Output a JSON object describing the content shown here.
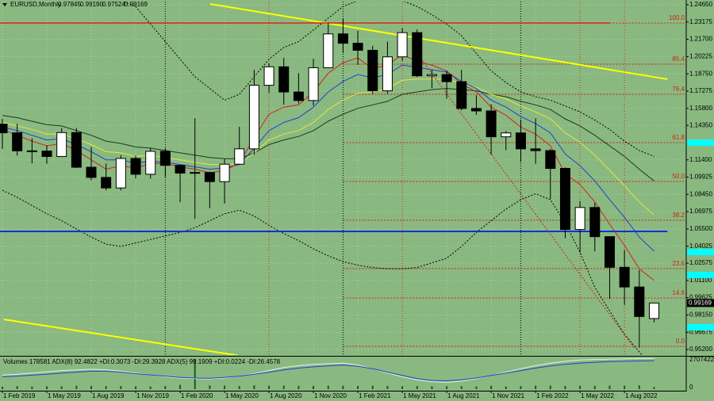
{
  "chart_data": {
    "type": "candlestick",
    "symbol": "EURUSD,Monthly",
    "last_bar_labels": [
      "0.97845",
      "0.99190",
      "0.97524",
      "0.99169"
    ],
    "categories": [
      "1 Feb 2019",
      null,
      null,
      "1 May 2019",
      null,
      null,
      "1 Aug 2019",
      null,
      null,
      "1 Nov 2019",
      null,
      null,
      "1 Feb 2020",
      null,
      null,
      "1 May 2020",
      null,
      null,
      "1 Aug 2020",
      null,
      null,
      "1 Nov 2020",
      null,
      null,
      "1 Feb 2021",
      null,
      null,
      "1 May 2021",
      null,
      null,
      "1 Aug 2021",
      null,
      null,
      "1 Nov 2021",
      null,
      null,
      "1 Feb 2022",
      null,
      null,
      "1 May 2022",
      null,
      null,
      "1 Aug 2022",
      null,
      null
    ],
    "open": [
      1.1445,
      1.1371,
      1.1217,
      1.1215,
      1.1169,
      1.1373,
      1.1077,
      1.099,
      1.09,
      1.1152,
      1.1017,
      1.1213,
      1.1093,
      1.1027,
      1.1032,
      1.0954,
      1.1103,
      1.1234,
      1.1777,
      1.1935,
      1.172,
      1.1647,
      1.1927,
      1.2216,
      1.2136,
      1.2076,
      1.173,
      1.202,
      1.2227,
      1.1858,
      1.1869,
      1.1808,
      1.1579,
      1.1558,
      1.1337,
      1.137,
      1.1234,
      1.1219,
      1.1067,
      1.0545,
      1.0733,
      1.0484,
      1.0222,
      1.0054,
      0.97845
    ],
    "high": [
      1.1489,
      1.1448,
      1.1324,
      1.1265,
      1.1412,
      1.1412,
      1.1249,
      1.1109,
      1.1179,
      1.1176,
      1.124,
      1.1239,
      1.1096,
      1.1495,
      1.104,
      1.1147,
      1.1422,
      1.1909,
      1.1966,
      1.2011,
      1.1881,
      1.2004,
      1.231,
      1.2349,
      1.2243,
      1.2114,
      1.215,
      1.2266,
      1.2254,
      1.1909,
      1.1901,
      1.1909,
      1.1692,
      1.1616,
      1.1386,
      1.1483,
      1.1495,
      1.1233,
      1.1076,
      1.0787,
      1.0774,
      1.0486,
      1.0369,
      1.0198,
      0.9919
    ],
    "low": [
      1.1234,
      1.1176,
      1.111,
      1.1107,
      1.1165,
      1.107,
      1.0965,
      1.0879,
      1.0879,
      1.0981,
      1.0981,
      1.0992,
      1.0778,
      1.0636,
      1.0727,
      1.0767,
      1.1098,
      1.1185,
      1.1711,
      1.1612,
      1.1622,
      1.1603,
      1.1923,
      1.2054,
      1.1952,
      1.1704,
      1.1704,
      1.1986,
      1.1847,
      1.1752,
      1.1664,
      1.1563,
      1.1524,
      1.1186,
      1.1222,
      1.1121,
      1.1106,
      1.0806,
      1.0471,
      1.0349,
      1.0359,
      0.9952,
      0.9901,
      0.9535,
      0.97524
    ],
    "close": [
      1.1371,
      1.1217,
      1.1215,
      1.1169,
      1.1373,
      1.1077,
      1.099,
      1.09,
      1.1152,
      1.1017,
      1.1213,
      1.1093,
      1.1027,
      1.1032,
      1.0954,
      1.1103,
      1.1234,
      1.1777,
      1.1935,
      1.172,
      1.1647,
      1.1927,
      1.2216,
      1.2136,
      1.2076,
      1.173,
      1.202,
      1.2227,
      1.1858,
      1.1869,
      1.1808,
      1.1579,
      1.1558,
      1.1337,
      1.137,
      1.1234,
      1.1219,
      1.1067,
      1.0545,
      1.0733,
      1.0484,
      1.0222,
      1.0054,
      0.9802,
      0.99169
    ],
    "up_color": "#ffffff",
    "down_color": "#000000",
    "ylim": [
      0.94726,
      1.24921
    ],
    "yticks": [
      {
        "value": 1.2465,
        "label": "1.24650"
      },
      {
        "value": 1.23175,
        "label": "1.23175"
      },
      {
        "value": 1.217,
        "label": "1.21700"
      },
      {
        "value": 1.20225,
        "label": "1.20225"
      },
      {
        "value": 1.1875,
        "label": "1.18750"
      },
      {
        "value": 1.17275,
        "label": "1.17275"
      },
      {
        "value": 1.158,
        "label": "1.15800"
      },
      {
        "value": 1.1435,
        "label": "1.14350"
      },
      {
        "value": 1.114,
        "label": "1.11400"
      },
      {
        "value": 1.09925,
        "label": "1.09925"
      },
      {
        "value": 1.0845,
        "label": "1.08450"
      },
      {
        "value": 1.06975,
        "label": "1.06975"
      },
      {
        "value": 1.055,
        "label": "1.05500"
      },
      {
        "value": 1.04025,
        "label": "1.04025"
      },
      {
        "value": 1.02575,
        "label": "1.02575"
      },
      {
        "value": 1.011,
        "label": "1.01100"
      },
      {
        "value": 0.99625,
        "label": "0.99625"
      },
      {
        "value": 0.9815,
        "label": "0.98150"
      },
      {
        "value": 0.96675,
        "label": "0.96675"
      },
      {
        "value": 0.952,
        "label": "0.95200"
      }
    ],
    "grid": true,
    "overlays": [
      {
        "color": "#000000",
        "dash": "2,2",
        "values": [
          1.3,
          1.29,
          1.28,
          1.275,
          1.27,
          1.265,
          1.26,
          1.255,
          1.25,
          1.245,
          1.23,
          1.215,
          1.2,
          1.185,
          1.175,
          1.165,
          1.17,
          1.185,
          1.2,
          1.21,
          1.215,
          1.225,
          1.235,
          1.245,
          1.25,
          1.252,
          1.252,
          1.25,
          1.245,
          1.238,
          1.23,
          1.22,
          1.205,
          1.19,
          1.18,
          1.172,
          1.168,
          1.165,
          1.16,
          1.155,
          1.148,
          1.14,
          1.13,
          1.122,
          1.117
        ]
      },
      {
        "color": "#000000",
        "dash": "2,2",
        "values": [
          1.088,
          1.082,
          1.075,
          1.068,
          1.062,
          1.055,
          1.048,
          1.042,
          1.04,
          1.043,
          1.046,
          1.049,
          1.052,
          1.056,
          1.062,
          1.068,
          1.071,
          1.066,
          1.058,
          1.051,
          1.045,
          1.038,
          1.032,
          1.027,
          1.024,
          1.022,
          1.021,
          1.021,
          1.022,
          1.026,
          1.03,
          1.04,
          1.052,
          1.062,
          1.072,
          1.08,
          1.085,
          1.08,
          1.06,
          1.035,
          1.005,
          0.985,
          0.965,
          0.95,
          0.935
        ]
      },
      {
        "color": "#1a3a1a",
        "dash": "none",
        "values": [
          1.152,
          1.15,
          1.147,
          1.144,
          1.143,
          1.139,
          1.135,
          1.13,
          1.128,
          1.125,
          1.124,
          1.122,
          1.12,
          1.118,
          1.116,
          1.115,
          1.115,
          1.12,
          1.127,
          1.131,
          1.134,
          1.139,
          1.147,
          1.153,
          1.158,
          1.161,
          1.164,
          1.17,
          1.172,
          1.174,
          1.175,
          1.174,
          1.173,
          1.17,
          1.168,
          1.164,
          1.161,
          1.157,
          1.149,
          1.143,
          1.135,
          1.126,
          1.117,
          1.106,
          1.096
        ]
      },
      {
        "color": "#e6e640",
        "dash": "none",
        "values": [
          1.146,
          1.143,
          1.14,
          1.136,
          1.136,
          1.132,
          1.127,
          1.121,
          1.12,
          1.117,
          1.118,
          1.116,
          1.114,
          1.112,
          1.11,
          1.11,
          1.111,
          1.12,
          1.131,
          1.136,
          1.139,
          1.146,
          1.157,
          1.165,
          1.171,
          1.172,
          1.175,
          1.182,
          1.183,
          1.183,
          1.183,
          1.179,
          1.176,
          1.17,
          1.166,
          1.16,
          1.155,
          1.149,
          1.137,
          1.129,
          1.118,
          1.105,
          1.092,
          1.078,
          1.067
        ]
      },
      {
        "color": "#1f3fd6",
        "dash": "none",
        "values": [
          1.142,
          1.139,
          1.135,
          1.131,
          1.132,
          1.127,
          1.121,
          1.114,
          1.114,
          1.111,
          1.113,
          1.112,
          1.11,
          1.108,
          1.106,
          1.107,
          1.11,
          1.124,
          1.139,
          1.146,
          1.15,
          1.159,
          1.172,
          1.181,
          1.187,
          1.184,
          1.187,
          1.195,
          1.193,
          1.191,
          1.189,
          1.181,
          1.175,
          1.165,
          1.159,
          1.151,
          1.145,
          1.137,
          1.119,
          1.109,
          1.096,
          1.08,
          1.065,
          1.048,
          1.036
        ]
      },
      {
        "color": "#d42020",
        "dash": "none",
        "values": [
          1.14,
          1.135,
          1.13,
          1.126,
          1.128,
          1.122,
          1.114,
          1.106,
          1.109,
          1.107,
          1.111,
          1.111,
          1.108,
          1.106,
          1.103,
          1.105,
          1.111,
          1.133,
          1.153,
          1.159,
          1.161,
          1.172,
          1.188,
          1.197,
          1.201,
          1.192,
          1.195,
          1.204,
          1.198,
          1.195,
          1.19,
          1.179,
          1.172,
          1.159,
          1.152,
          1.142,
          1.136,
          1.126,
          1.102,
          1.093,
          1.078,
          1.059,
          1.041,
          1.021,
          1.011
        ]
      }
    ],
    "trendlines": [
      {
        "color": "#ffff00",
        "width": 2,
        "dash": "none",
        "start": [
          14.03,
          1.2472
        ],
        "end": [
          44.9,
          1.1829
        ]
      },
      {
        "color": "#ffff00",
        "width": 2,
        "dash": "none",
        "start": [
          0.1,
          0.9777
        ],
        "end": [
          15.9,
          0.9469
        ]
      },
      {
        "color": "#1030e0",
        "width": 2,
        "dash": "none",
        "start": [
          -0.2,
          1.0529
        ],
        "end": [
          44.9,
          1.0529
        ]
      },
      {
        "color": "#e02010",
        "width": 1.5,
        "dash": "none",
        "start": [
          -0.2,
          1.23093
        ],
        "end": [
          41.0,
          1.23093
        ]
      },
      {
        "color": "#d02010",
        "width": 1,
        "dash": "2,2",
        "start": [
          27.7,
          1.2099
        ],
        "end": [
          42.7,
          0.9527
        ]
      }
    ],
    "fib_start": 23,
    "fib_color": "#d02010",
    "fib_levels": [
      {
        "label": "100.0",
        "price": 1.23093
      },
      {
        "label": "85.4",
        "price": 1.19572
      },
      {
        "label": "76.4",
        "price": 1.17
      },
      {
        "label": "61.8",
        "price": 1.1287
      },
      {
        "label": "50.0",
        "price": 1.0955
      },
      {
        "label": "38.2",
        "price": 1.0624
      },
      {
        "label": "23.6",
        "price": 1.0211
      },
      {
        "label": "14.6",
        "price": 0.996
      },
      {
        "label": "0.0",
        "price": 0.9547
      }
    ],
    "period_separators": [
      11,
      23,
      35
    ],
    "time_lines": [
      18,
      27,
      39,
      42
    ],
    "level_markers": {
      "color": "#00ffff",
      "prices": [
        1.1287,
        1.0353,
        1.0157,
        0.971
      ]
    },
    "indicator_header": "Volumes 178581  ADX(8) 92.4822 +DI:0.3073 -DI:29.3928  ADX(5) 99.1909 +DI:0.0224 -DI:26.4578",
    "volumes": [
      210000,
      260000,
      230000,
      240000,
      250000,
      300000,
      280000,
      260000,
      270000,
      240000,
      220000,
      260000,
      380000,
      2650000,
      320000,
      300000,
      280000,
      330000,
      300000,
      310000,
      290000,
      280000,
      300000,
      290000,
      280000,
      300000,
      270000,
      260000,
      270000,
      240000,
      250000,
      260000,
      240000,
      290000,
      230000,
      260000,
      300000,
      310000,
      280000,
      300000,
      290000,
      310000,
      300000,
      340000,
      178581
    ],
    "volume_color": "#1a5a1a",
    "vlim": [
      0,
      2707422
    ],
    "vticks": [
      2707422,
      0
    ],
    "adx_lim": [
      0,
      100
    ],
    "adx_lines": [
      {
        "color": "#e8f0e0",
        "values": [
          45,
          48,
          52,
          56,
          60,
          62,
          64,
          62,
          58,
          52,
          46,
          40,
          36,
          34,
          33,
          36,
          42,
          50,
          60,
          70,
          76,
          80,
          82,
          84,
          78,
          66,
          52,
          40,
          30,
          24,
          22,
          26,
          34,
          44,
          55,
          66,
          76,
          84,
          90,
          94,
          96,
          97,
          98,
          99,
          99
        ]
      },
      {
        "color": "#2040d0",
        "values": [
          40,
          42,
          45,
          48,
          52,
          55,
          58,
          58,
          55,
          50,
          46,
          42,
          38,
          36,
          35,
          38,
          42,
          48,
          55,
          62,
          68,
          72,
          75,
          78,
          74,
          66,
          55,
          44,
          34,
          28,
          27,
          30,
          36,
          44,
          52,
          60,
          68,
          75,
          80,
          84,
          87,
          89,
          90,
          91,
          92
        ]
      }
    ]
  }
}
